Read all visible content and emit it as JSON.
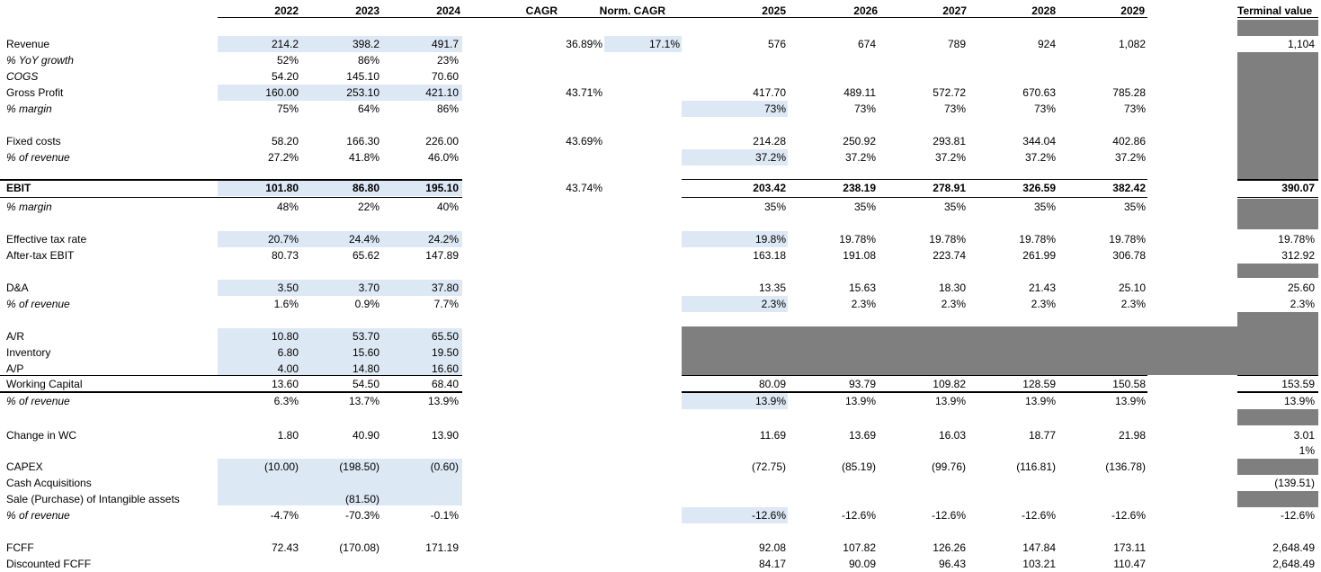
{
  "colors": {
    "input_fill": "#dde8f5",
    "block_fill": "#7f7f7f"
  },
  "header": {
    "y2022": "2022",
    "y2023": "2023",
    "y2024": "2024",
    "cagr": "CAGR",
    "norm_cagr": "Norm. CAGR",
    "y2025": "2025",
    "y2026": "2026",
    "y2027": "2027",
    "y2028": "2028",
    "y2029": "2029",
    "terminal": "Terminal value"
  },
  "rows": [
    {
      "label": "Revenue",
      "h": [
        "214.2",
        "398.2",
        "491.7"
      ],
      "cagr": "36.89%",
      "norm": "17.1%",
      "f": [
        "576",
        "674",
        "789",
        "924",
        "1,082"
      ],
      "tv": "1,104"
    },
    {
      "label": "% YoY growth",
      "h": [
        "52%",
        "86%",
        "23%"
      ],
      "cagr": "",
      "norm": "",
      "f": [
        "",
        "",
        "",
        "",
        ""
      ],
      "tv": ""
    },
    {
      "label": "COGS",
      "h": [
        "54.20",
        "145.10",
        "70.60"
      ],
      "cagr": "",
      "norm": "",
      "f": [
        "",
        "",
        "",
        "",
        ""
      ],
      "tv": ""
    },
    {
      "label": "Gross Profit",
      "h": [
        "160.00",
        "253.10",
        "421.10"
      ],
      "cagr": "43.71%",
      "norm": "",
      "f": [
        "417.70",
        "489.11",
        "572.72",
        "670.63",
        "785.28"
      ],
      "tv": ""
    },
    {
      "label": "% margin",
      "h": [
        "75%",
        "64%",
        "86%"
      ],
      "cagr": "",
      "norm": "",
      "f": [
        "73%",
        "73%",
        "73%",
        "73%",
        "73%"
      ],
      "tv": ""
    },
    {
      "label": "Fixed costs",
      "h": [
        "58.20",
        "166.30",
        "226.00"
      ],
      "cagr": "43.69%",
      "norm": "",
      "f": [
        "214.28",
        "250.92",
        "293.81",
        "344.04",
        "402.86"
      ],
      "tv": ""
    },
    {
      "label": "% of revenue",
      "h": [
        "27.2%",
        "41.8%",
        "46.0%"
      ],
      "cagr": "",
      "norm": "",
      "f": [
        "37.2%",
        "37.2%",
        "37.2%",
        "37.2%",
        "37.2%"
      ],
      "tv": ""
    },
    {
      "label": "EBIT",
      "h": [
        "101.80",
        "86.80",
        "195.10"
      ],
      "cagr": "43.74%",
      "norm": "",
      "f": [
        "203.42",
        "238.19",
        "278.91",
        "326.59",
        "382.42"
      ],
      "tv": "390.07"
    },
    {
      "label": "% margin",
      "h": [
        "48%",
        "22%",
        "40%"
      ],
      "cagr": "",
      "norm": "",
      "f": [
        "35%",
        "35%",
        "35%",
        "35%",
        "35%"
      ],
      "tv": ""
    },
    {
      "label": "Effective tax rate",
      "h": [
        "20.7%",
        "24.4%",
        "24.2%"
      ],
      "cagr": "",
      "norm": "",
      "f": [
        "19.8%",
        "19.78%",
        "19.78%",
        "19.78%",
        "19.78%"
      ],
      "tv": "19.78%"
    },
    {
      "label": "After-tax EBIT",
      "h": [
        "80.73",
        "65.62",
        "147.89"
      ],
      "cagr": "",
      "norm": "",
      "f": [
        "163.18",
        "191.08",
        "223.74",
        "261.99",
        "306.78"
      ],
      "tv": "312.92"
    },
    {
      "label": "D&A",
      "h": [
        "3.50",
        "3.70",
        "37.80"
      ],
      "cagr": "",
      "norm": "",
      "f": [
        "13.35",
        "15.63",
        "18.30",
        "21.43",
        "25.10"
      ],
      "tv": "25.60"
    },
    {
      "label": "% of revenue",
      "h": [
        "1.6%",
        "0.9%",
        "7.7%"
      ],
      "cagr": "",
      "norm": "",
      "f": [
        "2.3%",
        "2.3%",
        "2.3%",
        "2.3%",
        "2.3%"
      ],
      "tv": "2.3%"
    },
    {
      "label": "A/R",
      "h": [
        "10.80",
        "53.70",
        "65.50"
      ],
      "cagr": "",
      "norm": "",
      "f": [
        "",
        "",
        "",
        "",
        ""
      ],
      "tv": ""
    },
    {
      "label": "Inventory",
      "h": [
        "6.80",
        "15.60",
        "19.50"
      ],
      "cagr": "",
      "norm": "",
      "f": [
        "",
        "",
        "",
        "",
        ""
      ],
      "tv": ""
    },
    {
      "label": "A/P",
      "h": [
        "4.00",
        "14.80",
        "16.60"
      ],
      "cagr": "",
      "norm": "",
      "f": [
        "",
        "",
        "",
        "",
        ""
      ],
      "tv": ""
    },
    {
      "label": "Working Capital",
      "h": [
        "13.60",
        "54.50",
        "68.40"
      ],
      "cagr": "",
      "norm": "",
      "f": [
        "80.09",
        "93.79",
        "109.82",
        "128.59",
        "150.58"
      ],
      "tv": "153.59"
    },
    {
      "label": "% of revenue",
      "h": [
        "6.3%",
        "13.7%",
        "13.9%"
      ],
      "cagr": "",
      "norm": "",
      "f": [
        "13.9%",
        "13.9%",
        "13.9%",
        "13.9%",
        "13.9%"
      ],
      "tv": "13.9%"
    },
    {
      "label": "Change in WC",
      "h": [
        "1.80",
        "40.90",
        "13.90"
      ],
      "cagr": "",
      "norm": "",
      "f": [
        "11.69",
        "13.69",
        "16.03",
        "18.77",
        "21.98"
      ],
      "tv": "3.01"
    },
    {
      "label": "",
      "h": [
        "",
        "",
        ""
      ],
      "cagr": "",
      "norm": "",
      "f": [
        "",
        "",
        "",
        "",
        ""
      ],
      "tv": "1%"
    },
    {
      "label": "CAPEX",
      "h": [
        "(10.00)",
        "(198.50)",
        "(0.60)"
      ],
      "cagr": "",
      "norm": "",
      "f": [
        "(72.75)",
        "(85.19)",
        "(99.76)",
        "(116.81)",
        "(136.78)"
      ],
      "tv": ""
    },
    {
      "label": "Cash Acquisitions",
      "h": [
        "",
        "",
        ""
      ],
      "cagr": "",
      "norm": "",
      "f": [
        "",
        "",
        "",
        "",
        ""
      ],
      "tv": "(139.51)"
    },
    {
      "label": "Sale (Purchase) of Intangible assets",
      "h": [
        "",
        "(81.50)",
        ""
      ],
      "cagr": "",
      "norm": "",
      "f": [
        "",
        "",
        "",
        "",
        ""
      ],
      "tv": ""
    },
    {
      "label": "% of revenue",
      "h": [
        "-4.7%",
        "-70.3%",
        "-0.1%"
      ],
      "cagr": "",
      "norm": "",
      "f": [
        "-12.6%",
        "-12.6%",
        "-12.6%",
        "-12.6%",
        "-12.6%"
      ],
      "tv": "-12.6%"
    },
    {
      "label": "FCFF",
      "h": [
        "72.43",
        "(170.08)",
        "171.19"
      ],
      "cagr": "",
      "norm": "",
      "f": [
        "92.08",
        "107.82",
        "126.26",
        "147.84",
        "173.11"
      ],
      "tv": "2,648.49"
    },
    {
      "label": "Discounted FCFF",
      "h": [
        "",
        "",
        ""
      ],
      "cagr": "",
      "norm": "",
      "f": [
        "84.17",
        "90.09",
        "96.43",
        "103.21",
        "110.47"
      ],
      "tv": "2,648.49"
    }
  ]
}
